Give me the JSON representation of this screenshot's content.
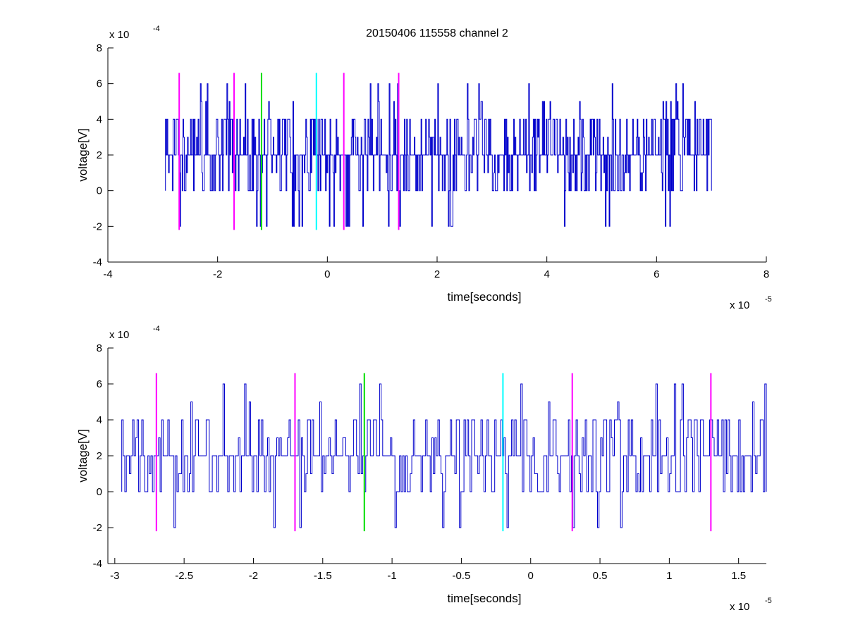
{
  "figure": {
    "title": "20150406 115558 channel 2"
  },
  "colors": {
    "signal": "#0000cc",
    "magenta": "#ff00ff",
    "green": "#00dd00",
    "cyan": "#00ffff",
    "axis": "#000000"
  },
  "chart_data": [
    {
      "type": "line",
      "title": "20150406 115558 channel 2",
      "xlabel": "time[seconds]",
      "ylabel": "voltage[V]",
      "x_multiplier": {
        "base": "x 10",
        "exp": "-5"
      },
      "y_multiplier": {
        "base": "x 10",
        "exp": "-4"
      },
      "xlim": [
        -4,
        8
      ],
      "ylim": [
        -4,
        8
      ],
      "xticks": [
        -4,
        -2,
        0,
        2,
        4,
        6,
        8
      ],
      "xtick_labels": [
        "-4",
        "-2",
        "0",
        "2",
        "4",
        "6",
        "8"
      ],
      "yticks": [
        -4,
        -2,
        0,
        2,
        4,
        6,
        8
      ],
      "ytick_labels": [
        "-4",
        "-2",
        "0",
        "2",
        "4",
        "6",
        "8"
      ],
      "grid": false,
      "signal": {
        "x_start": -2.95,
        "x_end": 7.0,
        "levels": [
          -2,
          0,
          1,
          2,
          3,
          4,
          5,
          6
        ]
      },
      "markers": [
        {
          "x": -2.7,
          "y_min": -2.2,
          "y_max": 6.6,
          "color": "magenta"
        },
        {
          "x": -1.7,
          "y_min": -2.2,
          "y_max": 6.6,
          "color": "magenta"
        },
        {
          "x": -1.2,
          "y_min": -2.2,
          "y_max": 6.6,
          "color": "green"
        },
        {
          "x": -0.2,
          "y_min": -2.2,
          "y_max": 6.6,
          "color": "cyan"
        },
        {
          "x": 0.3,
          "y_min": -2.2,
          "y_max": 6.6,
          "color": "magenta"
        },
        {
          "x": 1.3,
          "y_min": -2.2,
          "y_max": 6.6,
          "color": "magenta"
        }
      ]
    },
    {
      "type": "line",
      "title": "",
      "xlabel": "time[seconds]",
      "ylabel": "voltage[V]",
      "x_multiplier": {
        "base": "x 10",
        "exp": "-5"
      },
      "y_multiplier": {
        "base": "x 10",
        "exp": "-4"
      },
      "xlim": [
        -3.05,
        1.7
      ],
      "ylim": [
        -4,
        8
      ],
      "xticks": [
        -3,
        -2.5,
        -2,
        -1.5,
        -1,
        -0.5,
        0,
        0.5,
        1,
        1.5
      ],
      "xtick_labels": [
        "-3",
        "-2.5",
        "-2",
        "-1.5",
        "-1",
        "-0.5",
        "0",
        "0.5",
        "1",
        "1.5"
      ],
      "yticks": [
        -4,
        -2,
        0,
        2,
        4,
        6,
        8
      ],
      "ytick_labels": [
        "-4",
        "-2",
        "0",
        "2",
        "4",
        "6",
        "8"
      ],
      "grid": false,
      "signal": {
        "x_start": -2.95,
        "x_end": 1.7,
        "levels": [
          -2,
          0,
          1,
          2,
          3,
          4,
          5,
          6
        ]
      },
      "markers": [
        {
          "x": -2.7,
          "y_min": -2.2,
          "y_max": 6.6,
          "color": "magenta"
        },
        {
          "x": -1.7,
          "y_min": -2.2,
          "y_max": 6.6,
          "color": "magenta"
        },
        {
          "x": -1.2,
          "y_min": -2.2,
          "y_max": 6.6,
          "color": "green"
        },
        {
          "x": -0.2,
          "y_min": -2.2,
          "y_max": 6.6,
          "color": "cyan"
        },
        {
          "x": 0.3,
          "y_min": -2.2,
          "y_max": 6.6,
          "color": "magenta"
        },
        {
          "x": 1.3,
          "y_min": -2.2,
          "y_max": 6.6,
          "color": "magenta"
        }
      ]
    }
  ]
}
